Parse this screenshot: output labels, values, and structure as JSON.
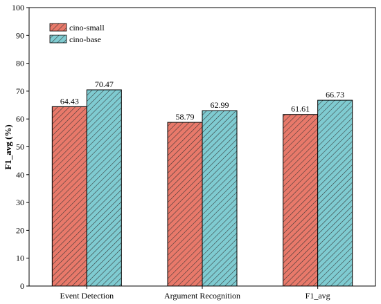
{
  "chart_data": {
    "type": "bar",
    "title": "",
    "xlabel": "",
    "ylabel": "F1_avg (%)",
    "ylim": [
      0,
      100
    ],
    "yticks": [
      0,
      10,
      20,
      30,
      40,
      50,
      60,
      70,
      80,
      90,
      100
    ],
    "categories": [
      "Event Detection",
      "Argument Recognition",
      "F1_avg"
    ],
    "series": [
      {
        "name": "cino-small",
        "values": [
          64.43,
          58.79,
          61.61
        ],
        "labels": [
          "64.43",
          "58.79",
          "61.61"
        ],
        "color": "#E8796A",
        "hatch": "///"
      },
      {
        "name": "cino-base",
        "values": [
          70.47,
          62.99,
          66.73
        ],
        "labels": [
          "70.47",
          "62.99",
          "66.73"
        ],
        "color": "#7FCBD1",
        "hatch": "///"
      }
    ],
    "grid": false,
    "legend_placement": "top-left"
  }
}
